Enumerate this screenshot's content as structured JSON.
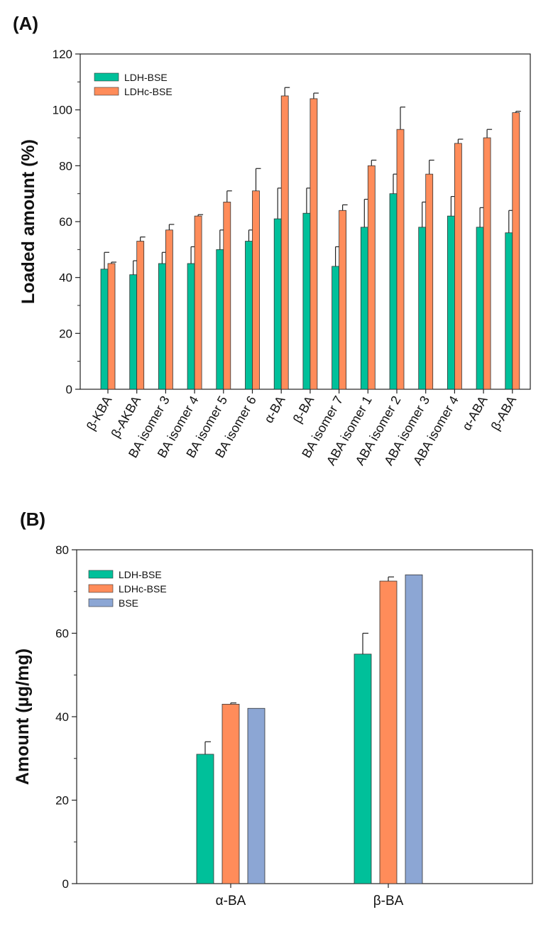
{
  "chart_data": [
    {
      "type": "bar",
      "panel": "(A)",
      "title": "",
      "xlabel": "",
      "ylabel": "Loaded amount (%)",
      "ylim": [
        0,
        120
      ],
      "yticks": [
        0,
        20,
        40,
        60,
        80,
        100,
        120
      ],
      "categories": [
        "β-KBA",
        "β-AKBA",
        "BA isomer 3",
        "BA isomer 4",
        "BA isomer 5",
        "BA isomer 6",
        "α-BA",
        "β-BA",
        "BA isomer 7",
        "ABA isomer 1",
        "ABA isomer 2",
        "ABA isomer 3",
        "ABA isomer 4",
        "α-ABA",
        "β-ABA"
      ],
      "series": [
        {
          "name": "LDH-BSE",
          "color": "#00c09a",
          "values": [
            43,
            41,
            45,
            45,
            50,
            53,
            61,
            63,
            44,
            58,
            70,
            58,
            62,
            58,
            56
          ],
          "errors": [
            6,
            5,
            4,
            6,
            7,
            4,
            11,
            9,
            7,
            10,
            7,
            9,
            7,
            7,
            8
          ]
        },
        {
          "name": "LDHc-BSE",
          "color": "#ff8c5a",
          "values": [
            45,
            53,
            57,
            62,
            67,
            71,
            105,
            104,
            64,
            80,
            93,
            77,
            88,
            90,
            99
          ],
          "errors": [
            0.5,
            1.5,
            2,
            0.5,
            4,
            8,
            3,
            2,
            2,
            2,
            8,
            5,
            1.5,
            3,
            0.5
          ]
        }
      ],
      "legend": "top-left"
    },
    {
      "type": "bar",
      "panel": "(B)",
      "title": "",
      "xlabel": "",
      "ylabel": "Amount (µg/mg)",
      "ylim": [
        0,
        80
      ],
      "yticks": [
        0,
        20,
        40,
        60,
        80
      ],
      "categories": [
        "α-BA",
        "β-BA"
      ],
      "series": [
        {
          "name": "LDH-BSE",
          "color": "#00c09a",
          "values": [
            31,
            55
          ],
          "errors": [
            3,
            5
          ]
        },
        {
          "name": "LDHc-BSE",
          "color": "#ff8c5a",
          "values": [
            43,
            72.5
          ],
          "errors": [
            0.3,
            1
          ]
        },
        {
          "name": "BSE",
          "color": "#8ca6d4",
          "values": [
            42,
            74
          ],
          "errors": [
            0,
            0
          ]
        }
      ],
      "legend": "top-left"
    }
  ]
}
